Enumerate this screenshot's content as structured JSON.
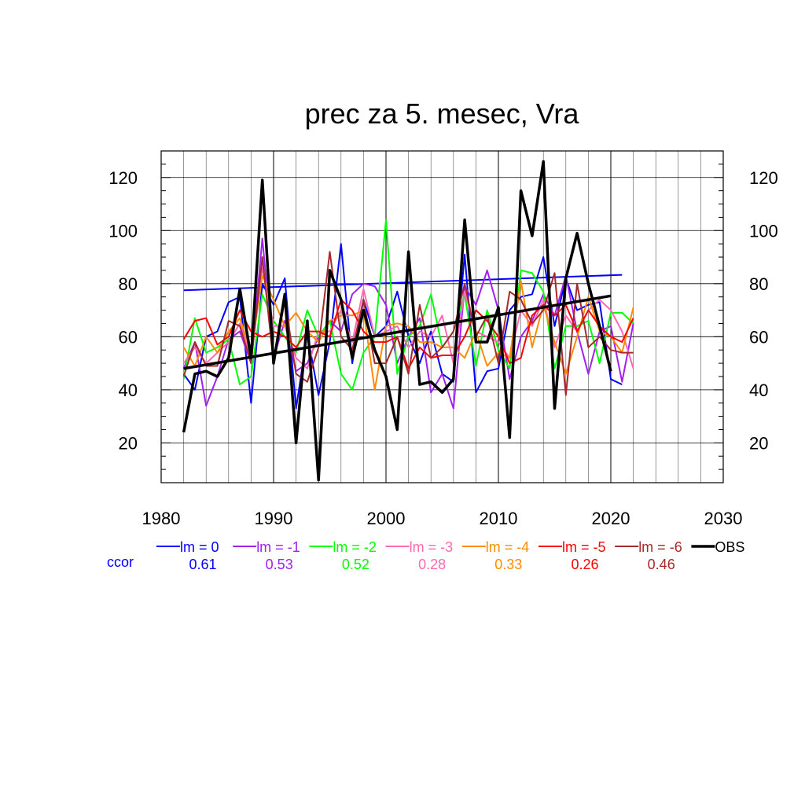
{
  "chart_data": {
    "type": "line",
    "title": "prec za 5. mesec, Vra",
    "xlabel": "",
    "ylabel": "",
    "xlim": [
      1980,
      2030
    ],
    "ylim": [
      5,
      130
    ],
    "x_ticks": [
      1980,
      1990,
      2000,
      2010,
      2020,
      2030
    ],
    "y_ticks": [
      20,
      40,
      60,
      80,
      100,
      120
    ],
    "grid": true,
    "legend_position": "bottom",
    "ccor_label": "ccor",
    "series": [
      {
        "name": "lm = 0",
        "color": "#0000ff",
        "ccor": "0.61",
        "x": [
          1982,
          1983,
          1984,
          1985,
          1986,
          1987,
          1988,
          1989,
          1990,
          1991,
          1992,
          1993,
          1994,
          1995,
          1996,
          1997,
          1998,
          1999,
          2000,
          2001,
          2002,
          2003,
          2004,
          2005,
          2006,
          2007,
          2008,
          2009,
          2010,
          2011,
          2012,
          2013,
          2014,
          2015,
          2016,
          2017,
          2018,
          2019,
          2020,
          2021
        ],
        "values": [
          46,
          40,
          60,
          62,
          73,
          75,
          35,
          80,
          72,
          82,
          33,
          61,
          38,
          58,
          95,
          50,
          74,
          60,
          64,
          77,
          60,
          50,
          62,
          46,
          43,
          91,
          39,
          47,
          48,
          70,
          75,
          76,
          90,
          64,
          82,
          70,
          72,
          73,
          44,
          42
        ],
        "trend": {
          "x": [
            1982,
            2021
          ],
          "y": [
            77.5,
            83.3
          ]
        }
      },
      {
        "name": "lm = -1",
        "color": "#a020f0",
        "ccor": "0.53",
        "x": [
          1982,
          1983,
          1984,
          1985,
          1986,
          1987,
          1988,
          1989,
          1990,
          1991,
          1992,
          1993,
          1994,
          1995,
          1996,
          1997,
          1998,
          1999,
          2000,
          2001,
          2002,
          2003,
          2004,
          2005,
          2006,
          2007,
          2008,
          2009,
          2010,
          2011,
          2012,
          2013,
          2014,
          2015,
          2016,
          2017,
          2018,
          2019,
          2020,
          2021,
          2022
        ],
        "values": [
          48,
          58,
          34,
          45,
          59,
          62,
          50,
          97,
          52,
          66,
          47,
          50,
          60,
          66,
          62,
          76,
          80,
          79,
          72,
          50,
          60,
          67,
          39,
          46,
          33,
          79,
          72,
          85,
          70,
          44,
          60,
          66,
          76,
          68,
          83,
          62,
          46,
          62,
          64,
          43,
          65
        ]
      },
      {
        "name": "lm = -2",
        "color": "#00ff00",
        "ccor": "0.52",
        "x": [
          1982,
          1983,
          1984,
          1985,
          1986,
          1987,
          1988,
          1989,
          1990,
          1991,
          1992,
          1993,
          1994,
          1995,
          1996,
          1997,
          1998,
          1999,
          2000,
          2001,
          2002,
          2003,
          2004,
          2005,
          2006,
          2007,
          2008,
          2009,
          2010,
          2011,
          2012,
          2013,
          2014,
          2015,
          2016,
          2017,
          2018,
          2019,
          2020,
          2021,
          2022
        ],
        "values": [
          44,
          67,
          54,
          56,
          59,
          42,
          45,
          76,
          66,
          60,
          54,
          70,
          60,
          66,
          46,
          40,
          54,
          60,
          104,
          46,
          60,
          64,
          76,
          56,
          62,
          76,
          49,
          70,
          55,
          48,
          85,
          84,
          77,
          48,
          64,
          64,
          66,
          50,
          69,
          69,
          65
        ]
      },
      {
        "name": "lm = -3",
        "color": "#ff69b4",
        "ccor": "0.28",
        "x": [
          1982,
          1983,
          1984,
          1985,
          1986,
          1987,
          1988,
          1989,
          1990,
          1991,
          1992,
          1993,
          1994,
          1995,
          1996,
          1997,
          1998,
          1999,
          2000,
          2001,
          2002,
          2003,
          2004,
          2005,
          2006,
          2007,
          2008,
          2009,
          2010,
          2011,
          2012,
          2013,
          2014,
          2015,
          2016,
          2017,
          2018,
          2019,
          2020,
          2021,
          2022
        ],
        "values": [
          50,
          56,
          50,
          54,
          58,
          65,
          52,
          86,
          64,
          64,
          52,
          48,
          62,
          62,
          70,
          58,
          78,
          60,
          62,
          64,
          56,
          62,
          60,
          68,
          50,
          77,
          62,
          60,
          58,
          52,
          70,
          64,
          74,
          56,
          68,
          62,
          70,
          74,
          70,
          62,
          48
        ]
      },
      {
        "name": "lm = -4",
        "color": "#ff8c00",
        "ccor": "0.33",
        "x": [
          1982,
          1983,
          1984,
          1985,
          1986,
          1987,
          1988,
          1989,
          1990,
          1991,
          1992,
          1993,
          1994,
          1995,
          1996,
          1997,
          1998,
          1999,
          2000,
          2001,
          2002,
          2003,
          2004,
          2005,
          2006,
          2007,
          2008,
          2009,
          2010,
          2011,
          2012,
          2013,
          2014,
          2015,
          2016,
          2017,
          2018,
          2019,
          2020,
          2021,
          2022
        ],
        "values": [
          56,
          49,
          60,
          54,
          62,
          67,
          54,
          83,
          74,
          64,
          69,
          62,
          58,
          66,
          68,
          68,
          70,
          40,
          64,
          65,
          64,
          58,
          58,
          56,
          56,
          52,
          62,
          49,
          54,
          52,
          81,
          56,
          72,
          58,
          46,
          60,
          75,
          62,
          60,
          54,
          71
        ]
      },
      {
        "name": "lm = -5",
        "color": "#ff0000",
        "ccor": "0.26",
        "x": [
          1982,
          1983,
          1984,
          1985,
          1986,
          1987,
          1988,
          1989,
          1990,
          1991,
          1992,
          1993,
          1994,
          1995,
          1996,
          1997,
          1998,
          1999,
          2000,
          2001,
          2002,
          2003,
          2004,
          2005,
          2006,
          2007,
          2008,
          2009,
          2010,
          2011,
          2012,
          2013,
          2014,
          2015,
          2016,
          2017,
          2018,
          2019,
          2020,
          2021,
          2022
        ],
        "values": [
          59,
          66,
          67,
          57,
          60,
          70,
          62,
          60,
          62,
          60,
          56,
          62,
          62,
          60,
          74,
          70,
          62,
          58,
          58,
          60,
          48,
          56,
          52,
          53,
          53,
          60,
          70,
          66,
          60,
          50,
          52,
          68,
          72,
          68,
          72,
          62,
          70,
          64,
          60,
          58,
          67
        ]
      },
      {
        "name": "lm = -6",
        "color": "#a52a2a",
        "ccor": "0.46",
        "x": [
          1982,
          1983,
          1984,
          1985,
          1986,
          1987,
          1988,
          1989,
          1990,
          1991,
          1992,
          1993,
          1994,
          1995,
          1996,
          1997,
          1998,
          1999,
          2000,
          2001,
          2002,
          2003,
          2004,
          2005,
          2006,
          2007,
          2008,
          2009,
          2010,
          2011,
          2012,
          2013,
          2014,
          2015,
          2016,
          2017,
          2018,
          2019,
          2020,
          2021,
          2022
        ],
        "values": [
          45,
          58,
          49,
          49,
          66,
          64,
          50,
          90,
          50,
          74,
          46,
          43,
          56,
          92,
          60,
          55,
          74,
          50,
          50,
          60,
          46,
          72,
          52,
          56,
          62,
          80,
          60,
          68,
          50,
          77,
          74,
          65,
          70,
          84,
          38,
          80,
          56,
          60,
          55,
          54,
          54
        ]
      },
      {
        "name": "OBS",
        "color": "#000000",
        "ccor": "",
        "x": [
          1982,
          1983,
          1984,
          1985,
          1986,
          1987,
          1988,
          1989,
          1990,
          1991,
          1992,
          1993,
          1994,
          1995,
          1996,
          1997,
          1998,
          1999,
          2000,
          2001,
          2002,
          2003,
          2004,
          2005,
          2006,
          2007,
          2008,
          2009,
          2010,
          2011,
          2012,
          2013,
          2014,
          2015,
          2016,
          2017,
          2018,
          2019,
          2020
        ],
        "values": [
          24,
          46,
          47,
          45,
          52,
          78,
          52,
          119,
          50,
          76,
          20,
          66,
          6,
          85,
          74,
          52,
          70,
          55,
          45,
          25,
          92,
          42,
          43,
          39,
          44,
          104,
          58,
          58,
          71,
          22,
          115,
          98,
          126,
          33,
          82,
          99,
          80,
          64,
          47
        ],
        "trend": {
          "x": [
            1982,
            2020
          ],
          "y": [
            48,
            75.4
          ]
        }
      }
    ]
  }
}
